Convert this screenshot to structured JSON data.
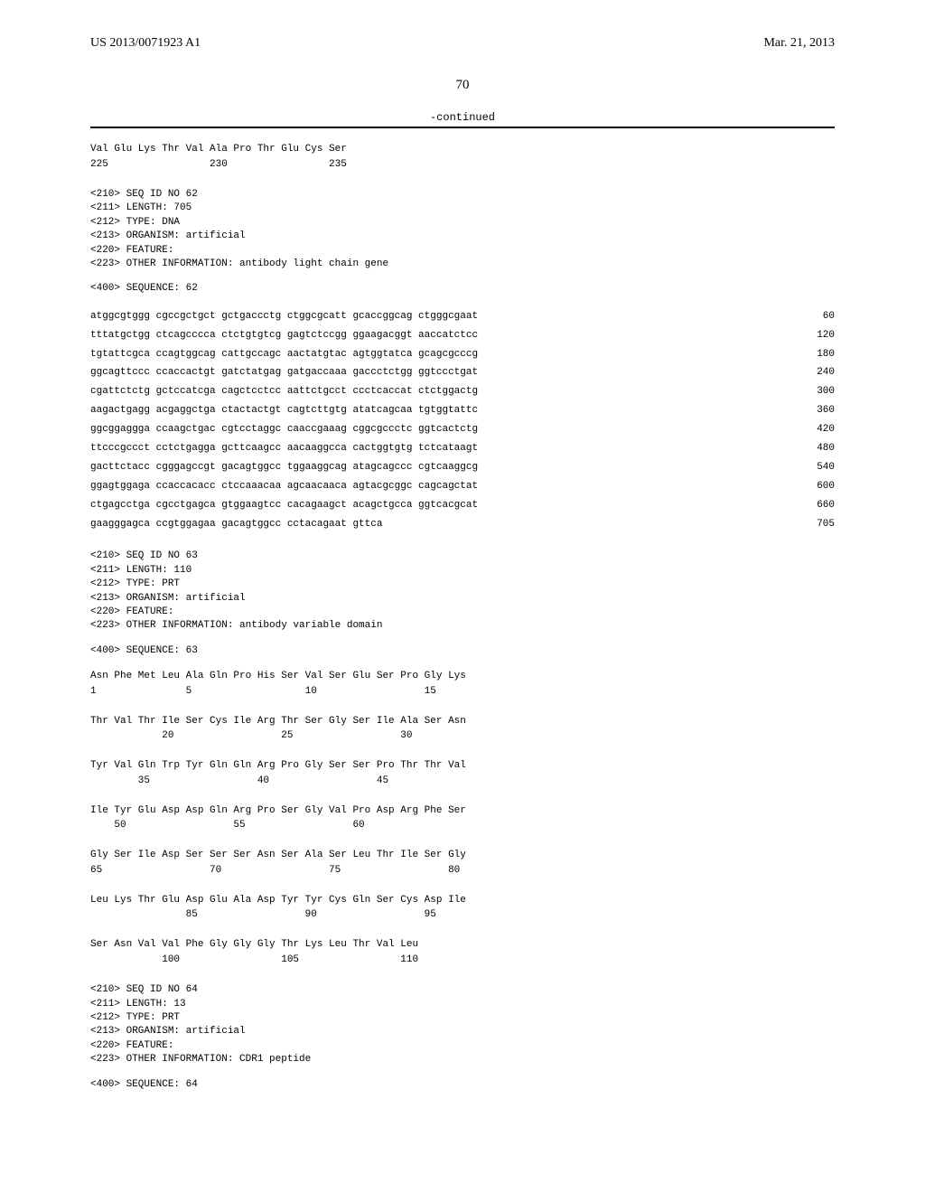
{
  "header": {
    "pub_no": "US 2013/0071923 A1",
    "date": "Mar. 21, 2013"
  },
  "page_number": "70",
  "continued_label": "-continued",
  "frag_top": {
    "line1": "Val Glu Lys Thr Val Ala Pro Thr Glu Cys Ser",
    "line2": "225                 230                 235"
  },
  "seq62": {
    "meta": "<210> SEQ ID NO 62\n<211> LENGTH: 705\n<212> TYPE: DNA\n<213> ORGANISM: artificial\n<220> FEATURE:\n<223> OTHER INFORMATION: antibody light chain gene",
    "seq_header": "<400> SEQUENCE: 62",
    "lines": [
      {
        "t": "atggcgtggg cgccgctgct gctgaccctg ctggcgcatt gcaccggcag ctgggcgaat",
        "n": "60"
      },
      {
        "t": "tttatgctgg ctcagcccca ctctgtgtcg gagtctccgg ggaagacggt aaccatctcc",
        "n": "120"
      },
      {
        "t": "tgtattcgca ccagtggcag cattgccagc aactatgtac agtggtatca gcagcgcccg",
        "n": "180"
      },
      {
        "t": "ggcagttccc ccaccactgt gatctatgag gatgaccaaa gaccctctgg ggtccctgat",
        "n": "240"
      },
      {
        "t": "cgattctctg gctccatcga cagctcctcc aattctgcct ccctcaccat ctctggactg",
        "n": "300"
      },
      {
        "t": "aagactgagg acgaggctga ctactactgt cagtcttgtg atatcagcaa tgtggtattc",
        "n": "360"
      },
      {
        "t": "ggcggaggga ccaagctgac cgtcctaggc caaccgaaag cggcgccctc ggtcactctg",
        "n": "420"
      },
      {
        "t": "ttcccgccct cctctgagga gcttcaagcc aacaaggcca cactggtgtg tctcataagt",
        "n": "480"
      },
      {
        "t": "gacttctacc cgggagccgt gacagtggcc tggaaggcag atagcagccc cgtcaaggcg",
        "n": "540"
      },
      {
        "t": "ggagtggaga ccaccacacc ctccaaacaa agcaacaaca agtacgcggc cagcagctat",
        "n": "600"
      },
      {
        "t": "ctgagcctga cgcctgagca gtggaagtcc cacagaagct acagctgcca ggtcacgcat",
        "n": "660"
      },
      {
        "t": "gaagggagca ccgtggagaa gacagtggcc cctacagaat gttca",
        "n": "705"
      }
    ]
  },
  "seq63": {
    "meta": "<210> SEQ ID NO 63\n<211> LENGTH: 110\n<212> TYPE: PRT\n<213> ORGANISM: artificial\n<220> FEATURE:\n<223> OTHER INFORMATION: antibody variable domain",
    "seq_header": "<400> SEQUENCE: 63",
    "aa": "Asn Phe Met Leu Ala Gln Pro His Ser Val Ser Glu Ser Pro Gly Lys\n1               5                   10                  15\n\nThr Val Thr Ile Ser Cys Ile Arg Thr Ser Gly Ser Ile Ala Ser Asn\n            20                  25                  30\n\nTyr Val Gln Trp Tyr Gln Gln Arg Pro Gly Ser Ser Pro Thr Thr Val\n        35                  40                  45\n\nIle Tyr Glu Asp Asp Gln Arg Pro Ser Gly Val Pro Asp Arg Phe Ser\n    50                  55                  60\n\nGly Ser Ile Asp Ser Ser Ser Asn Ser Ala Ser Leu Thr Ile Ser Gly\n65                  70                  75                  80\n\nLeu Lys Thr Glu Asp Glu Ala Asp Tyr Tyr Cys Gln Ser Cys Asp Ile\n                85                  90                  95\n\nSer Asn Val Val Phe Gly Gly Gly Thr Lys Leu Thr Val Leu\n            100                 105                 110"
  },
  "seq64": {
    "meta": "<210> SEQ ID NO 64\n<211> LENGTH: 13\n<212> TYPE: PRT\n<213> ORGANISM: artificial\n<220> FEATURE:\n<223> OTHER INFORMATION: CDR1 peptide",
    "seq_header": "<400> SEQUENCE: 64"
  }
}
